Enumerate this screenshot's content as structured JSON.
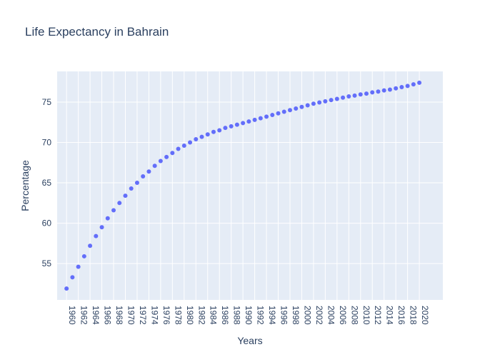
{
  "chart_data": {
    "type": "scatter",
    "title": "Life Expectancy in Bahrain",
    "xlabel": "Years",
    "ylabel": "Percentage",
    "x": [
      1960,
      1961,
      1962,
      1963,
      1964,
      1965,
      1966,
      1967,
      1968,
      1969,
      1970,
      1971,
      1972,
      1973,
      1974,
      1975,
      1976,
      1977,
      1978,
      1979,
      1980,
      1981,
      1982,
      1983,
      1984,
      1985,
      1986,
      1987,
      1988,
      1989,
      1990,
      1991,
      1992,
      1993,
      1994,
      1995,
      1996,
      1997,
      1998,
      1999,
      2000,
      2001,
      2002,
      2003,
      2004,
      2005,
      2006,
      2007,
      2008,
      2009,
      2010,
      2011,
      2012,
      2013,
      2014,
      2015,
      2016,
      2017,
      2018,
      2019,
      2020
    ],
    "y": [
      51.9,
      53.3,
      54.6,
      55.9,
      57.2,
      58.4,
      59.5,
      60.6,
      61.6,
      62.5,
      63.4,
      64.3,
      65.0,
      65.8,
      66.4,
      67.1,
      67.7,
      68.2,
      68.7,
      69.2,
      69.6,
      70.0,
      70.4,
      70.7,
      71.0,
      71.3,
      71.5,
      71.8,
      72.0,
      72.2,
      72.4,
      72.6,
      72.8,
      73.0,
      73.2,
      73.4,
      73.6,
      73.8,
      74.0,
      74.2,
      74.4,
      74.6,
      74.8,
      74.95,
      75.1,
      75.25,
      75.4,
      75.55,
      75.7,
      75.8,
      75.95,
      76.05,
      76.2,
      76.3,
      76.45,
      76.55,
      76.7,
      76.85,
      77.0,
      77.2,
      77.4
    ],
    "xticks": [
      1960,
      1962,
      1964,
      1966,
      1968,
      1970,
      1972,
      1974,
      1976,
      1978,
      1980,
      1982,
      1984,
      1986,
      1988,
      1990,
      1992,
      1994,
      1996,
      1998,
      2000,
      2002,
      2004,
      2006,
      2008,
      2010,
      2012,
      2014,
      2016,
      2018,
      2020
    ],
    "yticks": [
      55,
      60,
      65,
      70,
      75
    ],
    "xlim": [
      1958.4,
      2024.0
    ],
    "ylim": [
      50.5,
      78.8
    ],
    "grid": true,
    "colors": {
      "marker": "#636efa",
      "plot_background": "#e5ecf6",
      "grid": "#ffffff",
      "text": "#2a3f5f"
    }
  }
}
